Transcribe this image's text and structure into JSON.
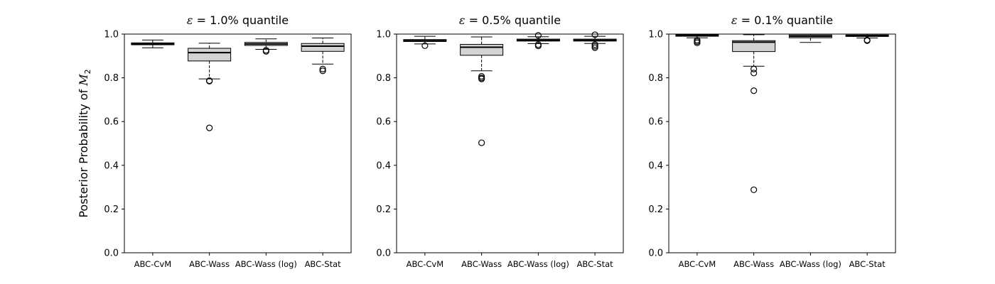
{
  "figure": {
    "ylabel_prefix": "Posterior Probability of ",
    "ylabel_symbol": "M",
    "ylabel_sub": "2"
  },
  "chart_data": [
    {
      "type": "boxplot",
      "title_symbol": "ε",
      "title_text": " = 1.0% quantile",
      "categories": [
        "ABC-CvM",
        "ABC-Wass",
        "ABC-Wass (log)",
        "ABC-Stat"
      ],
      "ylim": [
        0,
        1
      ],
      "yticks": [
        "0.0",
        "0.2",
        "0.4",
        "0.6",
        "0.8",
        "1.0"
      ],
      "boxes": [
        {
          "whislo": 0.937,
          "q1": 0.951,
          "med": 0.955,
          "q3": 0.96,
          "whishi": 0.973,
          "fliers": []
        },
        {
          "whislo": 0.795,
          "q1": 0.877,
          "med": 0.915,
          "q3": 0.935,
          "whishi": 0.958,
          "fliers": [
            0.787,
            0.785,
            0.571
          ]
        },
        {
          "whislo": 0.93,
          "q1": 0.948,
          "med": 0.955,
          "q3": 0.962,
          "whishi": 0.978,
          "fliers": [
            0.926,
            0.921
          ]
        },
        {
          "whislo": 0.863,
          "q1": 0.921,
          "med": 0.945,
          "q3": 0.957,
          "whishi": 0.982,
          "fliers": [
            0.84,
            0.832
          ]
        }
      ]
    },
    {
      "type": "boxplot",
      "title_symbol": "ε",
      "title_text": " = 0.5% quantile",
      "categories": [
        "ABC-CvM",
        "ABC-Wass",
        "ABC-Wass (log)",
        "ABC-Stat"
      ],
      "ylim": [
        0,
        1
      ],
      "yticks": [
        "0.0",
        "0.2",
        "0.4",
        "0.6",
        "0.8",
        "1.0"
      ],
      "boxes": [
        {
          "whislo": 0.955,
          "q1": 0.966,
          "med": 0.97,
          "q3": 0.975,
          "whishi": 0.99,
          "fliers": [
            0.947
          ]
        },
        {
          "whislo": 0.832,
          "q1": 0.903,
          "med": 0.94,
          "q3": 0.953,
          "whishi": 0.987,
          "fliers": [
            0.807,
            0.8,
            0.795,
            0.503
          ]
        },
        {
          "whislo": 0.956,
          "q1": 0.968,
          "med": 0.972,
          "q3": 0.977,
          "whishi": 0.988,
          "fliers": [
            0.994,
            0.952,
            0.946
          ]
        },
        {
          "whislo": 0.957,
          "q1": 0.968,
          "med": 0.972,
          "q3": 0.977,
          "whishi": 0.99,
          "fliers": [
            0.997,
            0.952,
            0.945,
            0.938
          ]
        }
      ]
    },
    {
      "type": "boxplot",
      "title_symbol": "ε",
      "title_text": " = 0.1% quantile",
      "categories": [
        "ABC-CvM",
        "ABC-Wass",
        "ABC-Wass (log)",
        "ABC-Stat"
      ],
      "ylim": [
        0,
        1
      ],
      "yticks": [
        "0.0",
        "0.2",
        "0.4",
        "0.6",
        "0.8",
        "1.0"
      ],
      "boxes": [
        {
          "whislo": 0.983,
          "q1": 0.99,
          "med": 0.994,
          "q3": 0.998,
          "whishi": 1.0,
          "fliers": [
            0.972,
            0.966,
            0.96
          ]
        },
        {
          "whislo": 0.853,
          "q1": 0.92,
          "med": 0.963,
          "q3": 0.97,
          "whishi": 0.997,
          "fliers": [
            0.84,
            0.822,
            0.741,
            0.288
          ]
        },
        {
          "whislo": 0.962,
          "q1": 0.983,
          "med": 0.99,
          "q3": 0.996,
          "whishi": 1.0,
          "fliers": []
        },
        {
          "whislo": 0.982,
          "q1": 0.989,
          "med": 0.992,
          "q3": 0.996,
          "whishi": 1.0,
          "fliers": [
            0.973,
            0.97
          ]
        }
      ]
    }
  ]
}
